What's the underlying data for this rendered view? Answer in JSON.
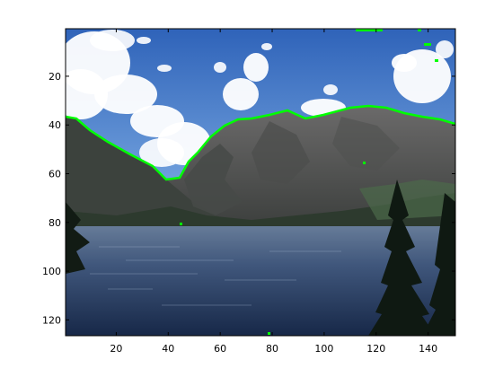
{
  "image": {
    "kind": "matlab-imshow-figure",
    "content": "Photograph of a mountain lake with a cloudy blue sky, a rocky mountain range, evergreen trees in the foreground, and a bright green traced line following the skyline ridge.",
    "overlay_color": "#00ff00"
  },
  "axes": {
    "x_ticks": [
      "20",
      "40",
      "60",
      "80",
      "100",
      "120",
      "140"
    ],
    "y_ticks": [
      "20",
      "40",
      "60",
      "80",
      "100",
      "120"
    ],
    "x_range": [
      0.5,
      150.5
    ],
    "y_range": [
      0.5,
      126.5
    ],
    "y_direction": "reverse"
  },
  "colors": {
    "sky_top": "#2f63b9",
    "sky_bottom": "#8bb6e6",
    "cloud": "#ffffff",
    "mountain": "#5a5a5a",
    "mountain_dark": "#3e4140",
    "forest": "#2e3a2f",
    "lake_top": "#5b6f8f",
    "lake_bottom": "#1b2c4e",
    "tree": "#101a12"
  }
}
